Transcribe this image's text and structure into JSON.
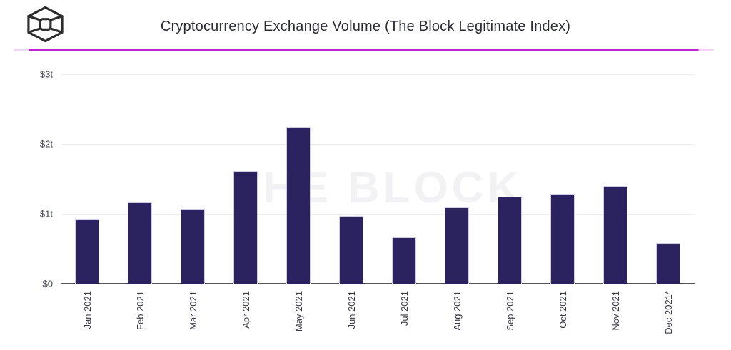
{
  "header": {
    "title": "Cryptocurrency Exchange Volume (The Block Legitimate Index)",
    "logo": "the-block-cube-logo"
  },
  "watermark": "THE BLOCK",
  "colors": {
    "bar": "#2b235f",
    "bar_border": "#cfcde3",
    "accent_line": "#bf25d3",
    "accent_line_ends": "#f2d4f6",
    "gridline": "#ededed",
    "axis_line": "#55555a",
    "title_text": "#2c2c38",
    "tick_text": "#3b3b4d",
    "watermark_text": "#f2f2f4"
  },
  "chart_data": {
    "type": "bar",
    "title": "Cryptocurrency Exchange Volume (The Block Legitimate Index)",
    "categories": [
      "Jan 2021",
      "Feb 2021",
      "Mar 2021",
      "Apr 2021",
      "May 2021",
      "Jun 2021",
      "Jul 2021",
      "Aug 2021",
      "Sep 2021",
      "Oct 2021",
      "Nov 2021",
      "Dec 2021*"
    ],
    "values": [
      0.93,
      1.16,
      1.07,
      1.61,
      2.24,
      0.97,
      0.66,
      1.09,
      1.24,
      1.29,
      1.4,
      0.58
    ],
    "unit": "trillion USD",
    "xlabel": "",
    "ylabel": "",
    "ylim": [
      0,
      3
    ],
    "yticks": [
      {
        "value": 0,
        "label": "$0"
      },
      {
        "value": 1,
        "label": "$1t"
      },
      {
        "value": 2,
        "label": "$2t"
      },
      {
        "value": 3,
        "label": "$3t"
      }
    ],
    "grid": true,
    "legend": false
  }
}
